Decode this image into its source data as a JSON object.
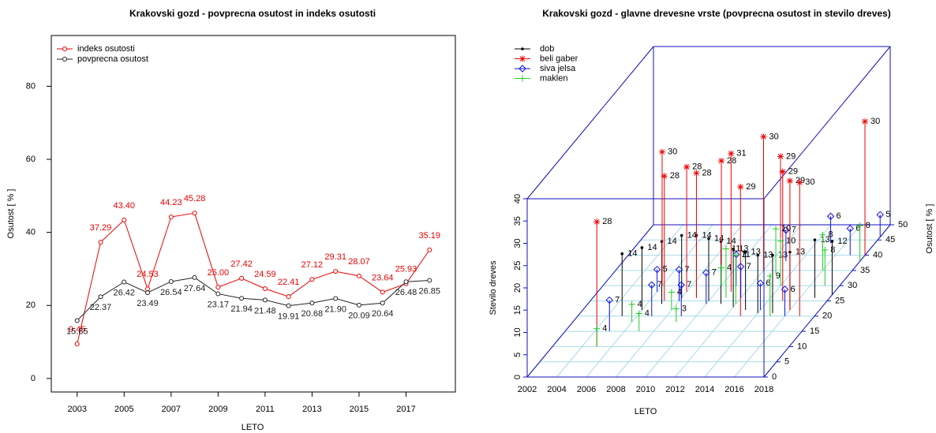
{
  "chart_data": [
    {
      "type": "line",
      "title": "Krakovski gozd - povprecna osutost in indeks osutosti",
      "xlabel": "LETO",
      "ylabel": "Osutost [ % ]",
      "x": [
        2003,
        2004,
        2005,
        2006,
        2007,
        2008,
        2009,
        2010,
        2011,
        2012,
        2013,
        2014,
        2015,
        2016,
        2017,
        2018
      ],
      "xlim": [
        2001.9,
        2019.1
      ],
      "xticks": [
        2003,
        2005,
        2007,
        2009,
        2011,
        2013,
        2015,
        2017
      ],
      "ylim": [
        -3.7,
        93.9
      ],
      "yticks": [
        0,
        20,
        40,
        60,
        80
      ],
      "legend": "top-left",
      "series": [
        {
          "name": "indeks osutosti",
          "color": "#ee0000",
          "values": [
            9.45,
            37.29,
            43.4,
            24.53,
            44.23,
            45.28,
            25,
            27.42,
            24.59,
            22.41,
            27.12,
            29.31,
            28.07,
            23.64,
            25.93,
            35.19
          ],
          "value_labels": [
            "9.45",
            "37.29",
            "43.40",
            "24.53",
            "44.23",
            "45.28",
            "25.00",
            "27.42",
            "24.59",
            "22.41",
            "27.12",
            "29.31",
            "28.07",
            "23.64",
            "25.93",
            "35.19"
          ]
        },
        {
          "name": "povprecna osutost",
          "color": "#222222",
          "values": [
            15.85,
            22.37,
            26.42,
            23.49,
            26.54,
            27.64,
            23.17,
            21.94,
            21.48,
            19.91,
            20.68,
            21.9,
            20.09,
            20.64,
            26.48,
            26.85
          ],
          "value_labels": [
            "15.85",
            "22.37",
            "26.42",
            "23.49",
            "26.54",
            "27.64",
            "23.17",
            "21.94",
            "21.48",
            "19.91",
            "20.68",
            "21.90",
            "20.09",
            "20.64",
            "26.48",
            "26.85"
          ]
        }
      ]
    },
    {
      "type": "scatter3d",
      "title": "Krakovski gozd - glavne drevesne vrste (povprecna osutost in stevilo dreves)",
      "xlabel": "LETO",
      "ylabel": "Osutost [ % ]",
      "zlabel": "Stevilo dreves",
      "xlim": [
        2002,
        2018
      ],
      "xticks": [
        2002,
        2004,
        2006,
        2008,
        2010,
        2012,
        2014,
        2016,
        2018
      ],
      "ylim": [
        0,
        50
      ],
      "yticks": [
        0,
        5,
        10,
        15,
        20,
        25,
        30,
        35,
        40,
        45,
        50
      ],
      "zlim": [
        0,
        40
      ],
      "zticks": [
        0,
        5,
        10,
        15,
        20,
        25,
        30,
        35,
        40
      ],
      "legend": "top-left",
      "box_color": "#1010c0",
      "grid_color": "#a8dce8",
      "series": [
        {
          "name": "dob",
          "color": "#000000",
          "marker": "circle",
          "x": [
            2005,
            2006,
            2007,
            2008,
            2009,
            2010,
            2011,
            2012,
            2013,
            2014,
            2015,
            2016,
            2017,
            2018
          ],
          "y": [
            20,
            22,
            24,
            26,
            26,
            25,
            24,
            23,
            22,
            21,
            21,
            22,
            26,
            27
          ],
          "z": [
            14,
            14,
            14,
            14,
            14,
            14,
            14,
            13,
            13,
            13,
            13,
            13,
            13,
            12
          ]
        },
        {
          "name": "beli gaber",
          "color": "#ee0000",
          "marker": "asterisk",
          "x": [
            2005,
            2006,
            2007,
            2008,
            2009,
            2010,
            2011,
            2012,
            2013,
            2014,
            2015,
            2016,
            2017,
            2018
          ],
          "y": [
            10,
            30,
            25,
            28,
            26,
            30,
            28,
            35,
            20,
            30,
            25,
            22,
            20,
            40
          ],
          "z": [
            28,
            30,
            28,
            28,
            28,
            28,
            31,
            30,
            29,
            29,
            29,
            29,
            30,
            30
          ]
        },
        {
          "name": "siva jelsa",
          "color": "#1010ee",
          "marker": "diamond",
          "x": [
            2005,
            2006,
            2007,
            2008,
            2009,
            2010,
            2011,
            2012,
            2013,
            2014,
            2015,
            2016,
            2017,
            2018
          ],
          "y": [
            15,
            28,
            20,
            25,
            20,
            24,
            30,
            26,
            38,
            22,
            44,
            20,
            40,
            46
          ],
          "z": [
            7,
            5,
            7,
            7,
            7,
            7,
            7,
            7,
            7,
            6,
            6,
            6,
            6,
            5
          ]
        },
        {
          "name": "maklen",
          "color": "#22cc22",
          "marker": "plus",
          "x": [
            2005,
            2006,
            2007,
            2008,
            2009,
            2010,
            2011,
            2012,
            2013,
            2014,
            2015,
            2016,
            2017,
            2018
          ],
          "y": [
            10,
            18,
            15,
            22,
            18,
            30,
            26,
            24,
            34,
            30,
            20,
            35,
            30,
            38
          ],
          "z": [
            4,
            4,
            4,
            4,
            3,
            4,
            11,
            11,
            10,
            10,
            9,
            8,
            8,
            8
          ]
        }
      ]
    }
  ]
}
